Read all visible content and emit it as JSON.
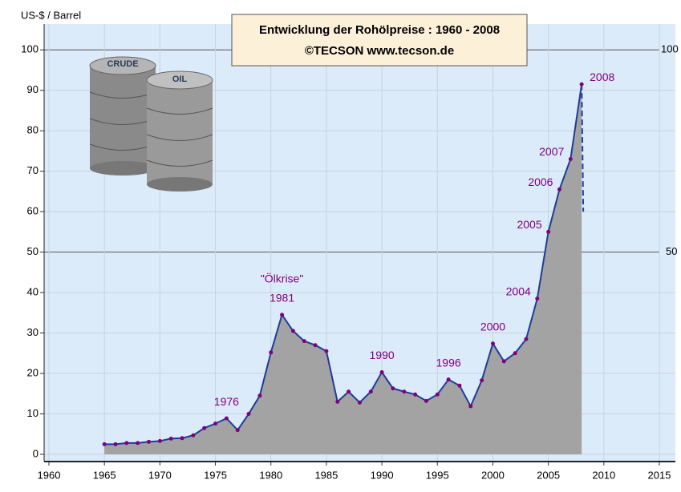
{
  "chart_data": {
    "type": "area",
    "title": "Entwicklung der Rohölpreise :  1960 - 2008",
    "subtitle": "©TECSON       www.tecson.de",
    "y_label": "US-$ / Barrel",
    "image_labels": [
      "CRUDE",
      "OIL"
    ],
    "x": [
      1965,
      1966,
      1967,
      1968,
      1969,
      1970,
      1971,
      1972,
      1973,
      1974,
      1975,
      1976,
      1977,
      1978,
      1979,
      1980,
      1981,
      1982,
      1983,
      1984,
      1985,
      1986,
      1987,
      1988,
      1989,
      1990,
      1991,
      1992,
      1993,
      1994,
      1995,
      1996,
      1997,
      1998,
      1999,
      2000,
      2001,
      2002,
      2003,
      2004,
      2005,
      2006,
      2007,
      2008
    ],
    "values": [
      2.5,
      2.5,
      2.8,
      2.8,
      3.1,
      3.3,
      3.9,
      4.0,
      4.7,
      6.5,
      7.6,
      8.9,
      6.0,
      10.0,
      14.5,
      25.2,
      34.5,
      30.5,
      28.0,
      27.0,
      25.5,
      13.0,
      15.5,
      12.8,
      15.5,
      20.3,
      16.3,
      15.5,
      14.8,
      13.2,
      14.8,
      18.5,
      17.0,
      11.9,
      18.3,
      27.4,
      23.0,
      25.0,
      28.5,
      38.5,
      55.0,
      65.5,
      73.0,
      91.5
    ],
    "drop": {
      "x": [
        2008,
        2008
      ],
      "values": [
        91.5,
        60
      ]
    },
    "color": "#1f3c9c",
    "fill": "#a3a3a3",
    "marker_color": "#800080",
    "annotations": [
      "1976",
      "1981",
      "1990",
      "1996",
      "2000",
      "2004",
      "2005",
      "2006",
      "2007",
      "2008"
    ],
    "callout": "\"Ölkrise\"",
    "xlim": [
      1960,
      2015
    ],
    "xticks": [
      1960,
      1965,
      1970,
      1975,
      1980,
      1985,
      1990,
      1995,
      2000,
      2005,
      2010,
      2015
    ],
    "ylim": [
      0,
      105
    ],
    "yticks": [
      0,
      10,
      20,
      30,
      40,
      50,
      60,
      70,
      80,
      90,
      100
    ],
    "y2ticks": [
      50,
      100
    ],
    "grid": true
  }
}
